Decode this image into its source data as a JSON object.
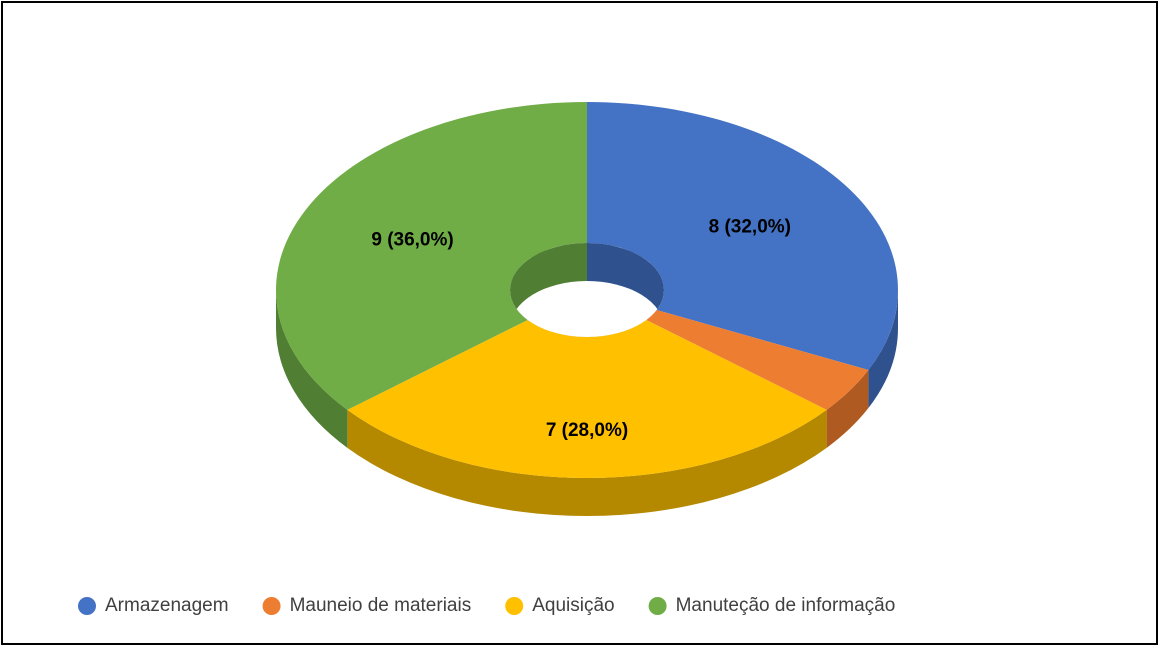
{
  "chart_data": {
    "type": "donut3d",
    "categories": [
      "Armazenagem",
      "Mauneio de materiais",
      "Aquisição",
      "Manuteção de informação"
    ],
    "values": [
      8,
      1,
      7,
      9
    ],
    "value_labels": [
      "8 (32,0%)",
      null,
      "7 (28,0%)",
      "9 (36,0%)"
    ],
    "colors": [
      "#4472c4",
      "#ed7d31",
      "#ffc000",
      "#70ad47"
    ],
    "side_colors": [
      "#2f528f",
      "#ae5a21",
      "#b48900",
      "#507e32"
    ],
    "legend": "bottom"
  }
}
